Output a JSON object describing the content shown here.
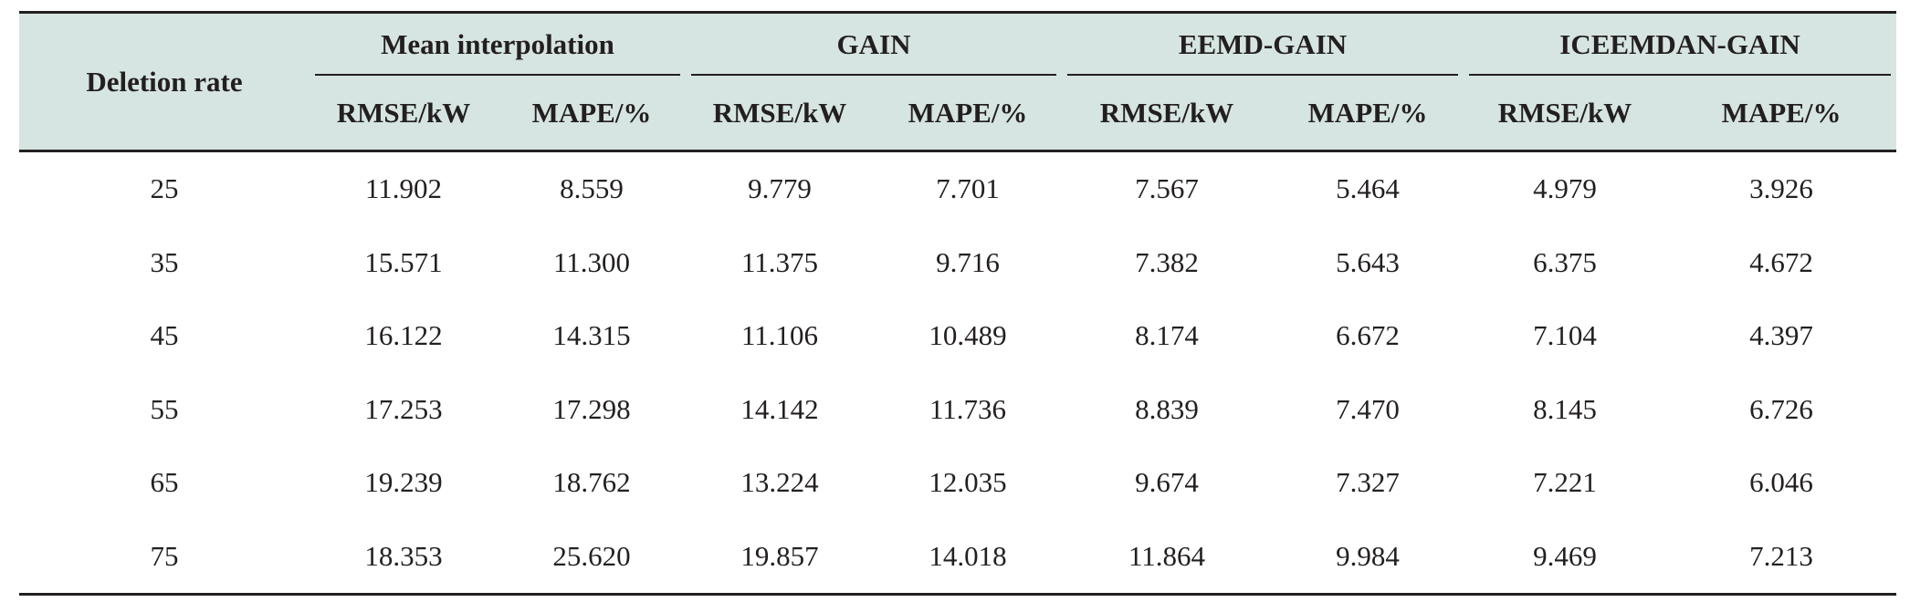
{
  "table": {
    "row_header": "Deletion rate",
    "groups": [
      {
        "label": "Mean interpolation",
        "sub": [
          "RMSE/kW",
          "MAPE/%"
        ]
      },
      {
        "label": "GAIN",
        "sub": [
          "RMSE/kW",
          "MAPE/%"
        ]
      },
      {
        "label": "EEMD-GAIN",
        "sub": [
          "RMSE/kW",
          "MAPE/%"
        ]
      },
      {
        "label": "ICEEMDAN-GAIN",
        "sub": [
          "RMSE/kW",
          "MAPE/%"
        ]
      }
    ],
    "rows": [
      [
        "25",
        "11.902",
        "8.559",
        "9.779",
        "7.701",
        "7.567",
        "5.464",
        "4.979",
        "3.926"
      ],
      [
        "35",
        "15.571",
        "11.300",
        "11.375",
        "9.716",
        "7.382",
        "5.643",
        "6.375",
        "4.672"
      ],
      [
        "45",
        "16.122",
        "14.315",
        "11.106",
        "10.489",
        "8.174",
        "6.672",
        "7.104",
        "4.397"
      ],
      [
        "55",
        "17.253",
        "17.298",
        "14.142",
        "11.736",
        "8.839",
        "7.470",
        "8.145",
        "6.726"
      ],
      [
        "65",
        "19.239",
        "18.762",
        "13.224",
        "12.035",
        "9.674",
        "7.327",
        "7.221",
        "6.046"
      ],
      [
        "75",
        "18.353",
        "25.620",
        "19.857",
        "14.018",
        "11.864",
        "9.984",
        "9.469",
        "7.213"
      ]
    ]
  }
}
